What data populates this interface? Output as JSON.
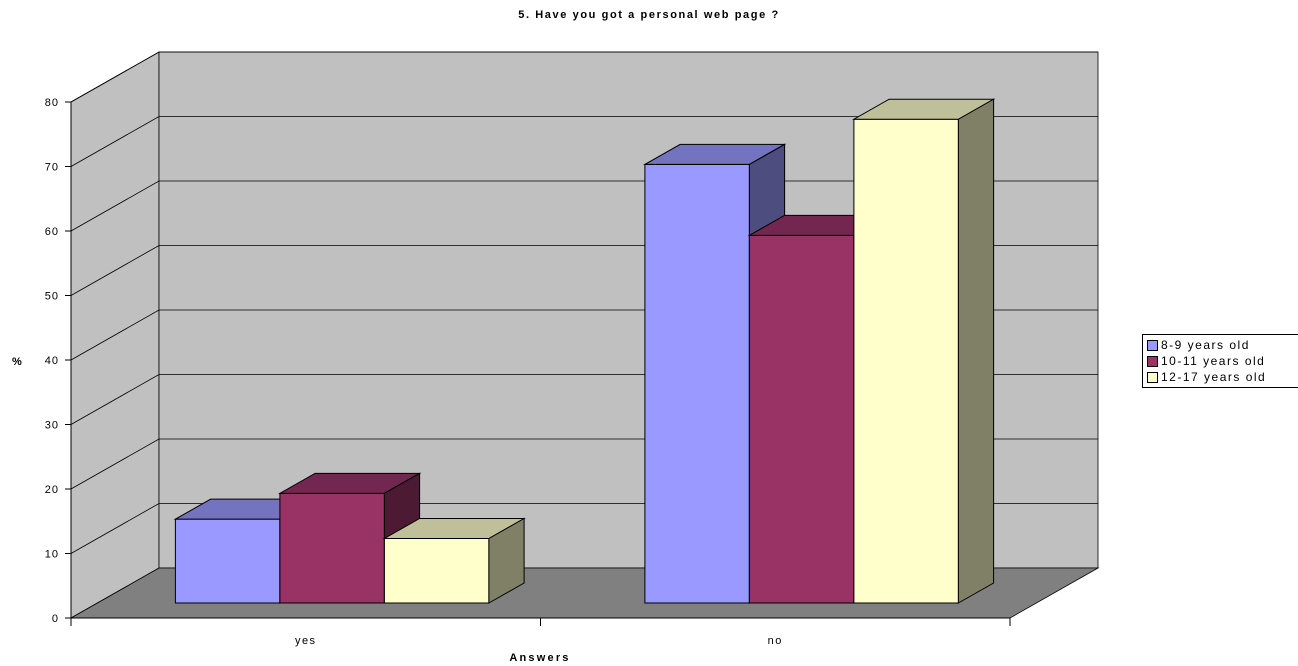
{
  "chart_data": {
    "type": "bar",
    "title": "5. Have you got a personal web page ?",
    "xlabel": "Answers",
    "ylabel": "%",
    "categories": [
      "yes",
      "no"
    ],
    "series": [
      {
        "name": "8-9 years old",
        "values": [
          13,
          68
        ],
        "color": "#9999FF",
        "top_color": "#7373BF",
        "side_color": "#4D4D80"
      },
      {
        "name": "10-11 years old",
        "values": [
          17,
          57
        ],
        "color": "#993366",
        "top_color": "#732650",
        "side_color": "#4D1A33"
      },
      {
        "name": "12-17 years old",
        "values": [
          10,
          75
        ],
        "color": "#FFFFCC",
        "top_color": "#BFBF99",
        "side_color": "#808066"
      }
    ],
    "ylim": [
      0,
      80
    ],
    "yticks": [
      "0",
      "10",
      "20",
      "30",
      "40",
      "50",
      "60",
      "70",
      "80"
    ],
    "grid": true,
    "legend_position": "right",
    "wall_color": "#C0C0C0",
    "floor_color": "#808080"
  }
}
